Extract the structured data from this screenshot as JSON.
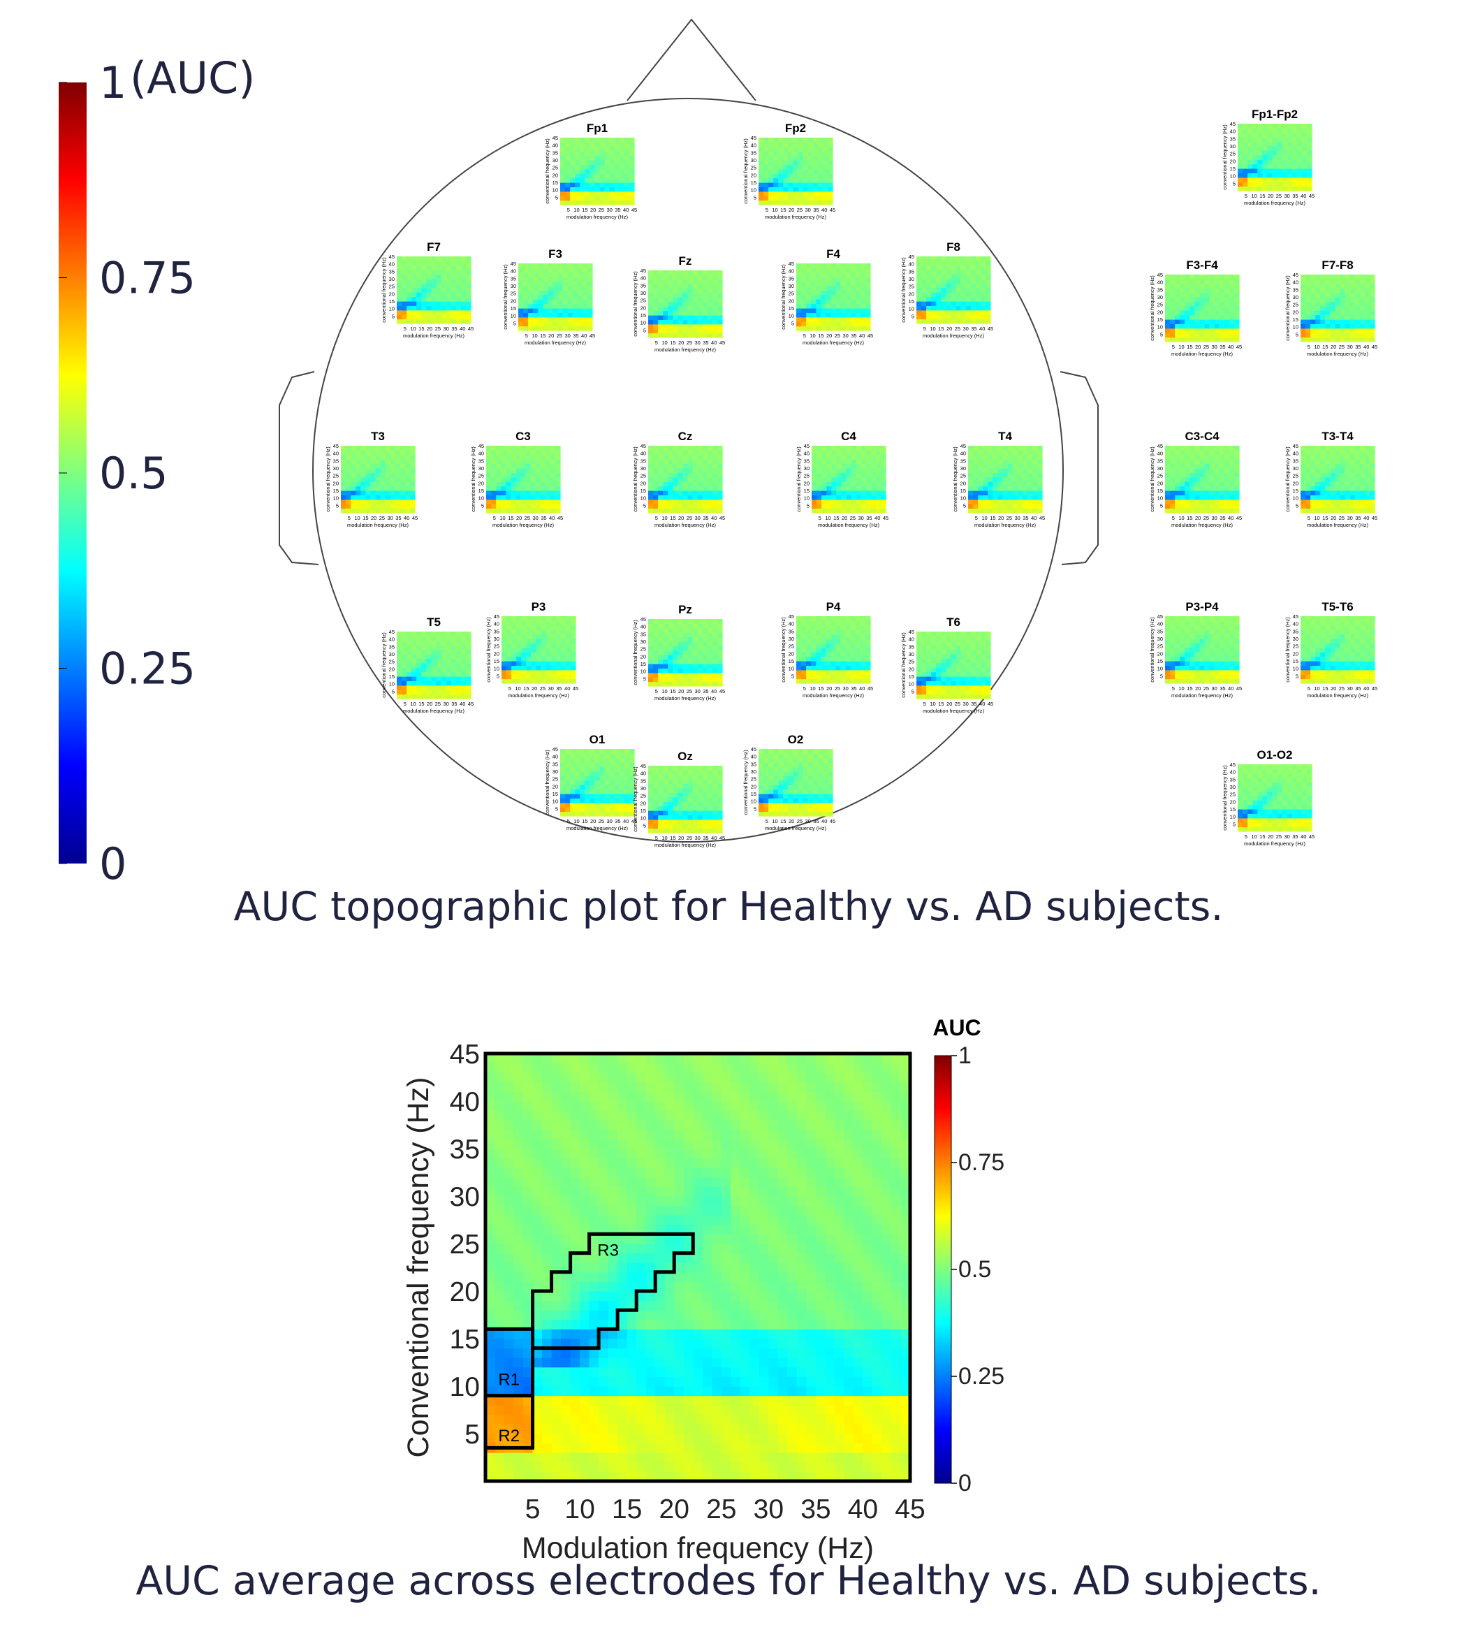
{
  "captions": {
    "topographic": "AUC topographic plot for Healthy vs. AD subjects.",
    "average": "AUC average across electrodes for Healthy vs. AD subjects."
  },
  "colorbar_main": {
    "unit": "(AUC)",
    "ticks": [
      {
        "value": 1,
        "label": "1"
      },
      {
        "value": 0.75,
        "label": "0.75"
      },
      {
        "value": 0.5,
        "label": "0.5"
      },
      {
        "value": 0.25,
        "label": "0.25"
      },
      {
        "value": 0,
        "label": "0"
      }
    ]
  },
  "chart_data": [
    {
      "type": "heatmap",
      "title": "AUC topographic plot for Healthy vs. AD subjects.",
      "xlabel": "modulation frequency (Hz)",
      "ylabel": "conventional frequency (Hz)",
      "x_ticks": [
        "5",
        "10",
        "15",
        "20",
        "25",
        "30",
        "35",
        "40",
        "45"
      ],
      "y_ticks": [
        "5",
        "10",
        "15",
        "20",
        "25",
        "30",
        "35",
        "40",
        "45"
      ],
      "color_scale": {
        "range": [
          0,
          1
        ],
        "colormap": "jet"
      },
      "electrodes": [
        {
          "name": "Fp1",
          "variant": 0
        },
        {
          "name": "Fp2",
          "variant": 1
        },
        {
          "name": "F7",
          "variant": 2
        },
        {
          "name": "F3",
          "variant": 0
        },
        {
          "name": "Fz",
          "variant": 1
        },
        {
          "name": "F4",
          "variant": 2
        },
        {
          "name": "F8",
          "variant": 0
        },
        {
          "name": "T3",
          "variant": 1
        },
        {
          "name": "C3",
          "variant": 2
        },
        {
          "name": "Cz",
          "variant": 0
        },
        {
          "name": "C4",
          "variant": 1
        },
        {
          "name": "T4",
          "variant": 2
        },
        {
          "name": "T5",
          "variant": 0
        },
        {
          "name": "P3",
          "variant": 1
        },
        {
          "name": "Pz",
          "variant": 2
        },
        {
          "name": "P4",
          "variant": 0
        },
        {
          "name": "T6",
          "variant": 1
        },
        {
          "name": "O1",
          "variant": 2
        },
        {
          "name": "Oz",
          "variant": 0
        },
        {
          "name": "O2",
          "variant": 1
        },
        {
          "name": "Fp1-Fp2",
          "variant": 2
        },
        {
          "name": "F3-F4",
          "variant": 0
        },
        {
          "name": "F7-F8",
          "variant": 1
        },
        {
          "name": "C3-C4",
          "variant": 2
        },
        {
          "name": "T3-T4",
          "variant": 0
        },
        {
          "name": "P3-P4",
          "variant": 1
        },
        {
          "name": "T5-T6",
          "variant": 2
        },
        {
          "name": "O1-O2",
          "variant": 0
        }
      ]
    },
    {
      "type": "heatmap",
      "title": "AUC average across electrodes for Healthy vs. AD subjects.",
      "xlabel": "Modulation frequency (Hz)",
      "ylabel": "Conventional frequency (Hz)",
      "x_ticks": [
        "5",
        "10",
        "15",
        "20",
        "25",
        "30",
        "35",
        "40",
        "45"
      ],
      "y_ticks": [
        "5",
        "10",
        "15",
        "20",
        "25",
        "30",
        "35",
        "40",
        "45"
      ],
      "xlim": [
        0,
        45
      ],
      "ylim": [
        0,
        45
      ],
      "color_scale": {
        "range": [
          0,
          1
        ],
        "colormap": "jet"
      },
      "colorbar": {
        "title": "AUC",
        "ticks": [
          {
            "value": 1,
            "label": "1"
          },
          {
            "value": 0.75,
            "label": "0.75"
          },
          {
            "value": 0.5,
            "label": "0.5"
          },
          {
            "value": 0.25,
            "label": "0.25"
          },
          {
            "value": 0,
            "label": "0"
          }
        ]
      },
      "regions": [
        {
          "label": "R1",
          "polygon": [
            [
              0,
              16
            ],
            [
              5,
              16
            ],
            [
              5,
              9
            ],
            [
              0,
              9
            ]
          ]
        },
        {
          "label": "R2",
          "polygon": [
            [
              0,
              9
            ],
            [
              5,
              9
            ],
            [
              5,
              3.5
            ],
            [
              0,
              3.5
            ]
          ]
        },
        {
          "label": "R3",
          "polygon": [
            [
              5,
              20
            ],
            [
              7,
              20
            ],
            [
              7,
              22
            ],
            [
              9,
              22
            ],
            [
              9,
              24
            ],
            [
              11,
              24
            ],
            [
              11,
              26
            ],
            [
              22,
              26
            ],
            [
              22,
              24
            ],
            [
              20,
              24
            ],
            [
              20,
              22
            ],
            [
              18,
              22
            ],
            [
              18,
              20
            ],
            [
              16,
              20
            ],
            [
              16,
              18
            ],
            [
              14,
              18
            ],
            [
              14,
              16
            ],
            [
              12,
              16
            ],
            [
              12,
              14
            ],
            [
              5,
              14
            ]
          ]
        }
      ]
    }
  ]
}
